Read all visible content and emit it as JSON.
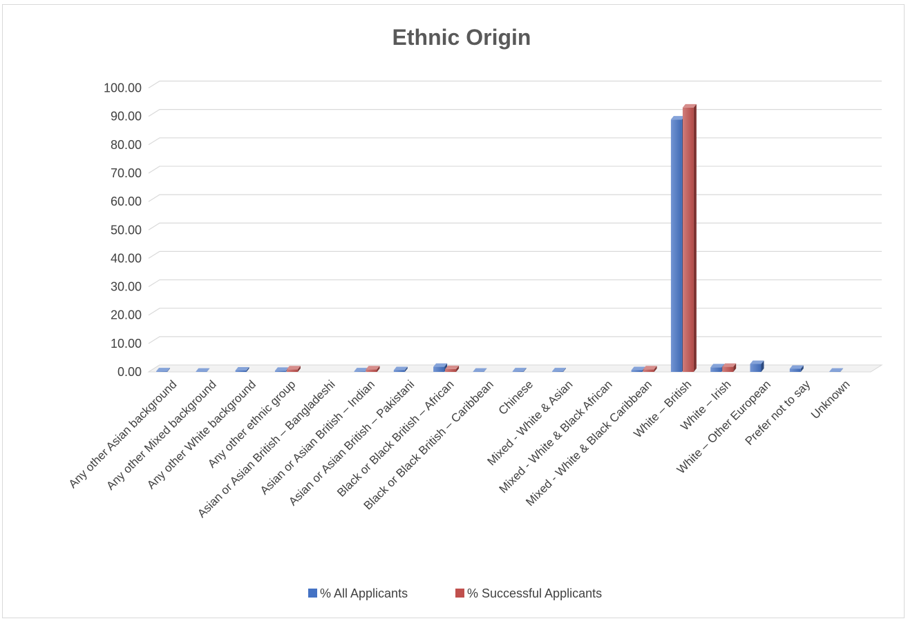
{
  "chart_data": {
    "type": "bar",
    "title": "Ethnic Origin",
    "xlabel": "",
    "ylabel": "",
    "ylim": [
      0,
      100
    ],
    "yticks": [
      "0.00",
      "10.00",
      "20.00",
      "30.00",
      "40.00",
      "50.00",
      "60.00",
      "70.00",
      "80.00",
      "90.00",
      "100.00"
    ],
    "grid": true,
    "legend_position": "bottom",
    "categories": [
      "Any other Asian background",
      "Any other Mixed background",
      "Any other White background",
      "Any other ethnic group",
      "Asian or Asian British – Bangladeshi",
      "Asian or Asian British – Indian",
      "Asian or Asian British – Pakistani",
      "Black or Black British – African",
      "Black or Black British – Caribbean",
      "Chinese",
      "Mixed - White & Asian",
      "Mixed - White & Black African",
      "Mixed - White & Black Caribbean",
      "White – British",
      "White – Irish",
      "White – Other European",
      "Prefer not to say",
      "Unknown"
    ],
    "series": [
      {
        "name": "% All Applicants",
        "color": "#4472c4",
        "values": [
          0.2,
          0.1,
          0.5,
          0.4,
          0,
          0.2,
          0.6,
          1.8,
          0.1,
          0.2,
          0.2,
          0,
          0.6,
          88.9,
          1.6,
          2.8,
          1.1,
          0.1
        ]
      },
      {
        "name": "% Successful Applicants",
        "color": "#c0504d",
        "values": [
          0,
          0,
          0,
          0.9,
          0,
          0.9,
          0,
          1.0,
          0,
          0,
          0,
          0,
          0.9,
          93.1,
          1.8,
          0,
          0,
          0
        ]
      }
    ]
  }
}
